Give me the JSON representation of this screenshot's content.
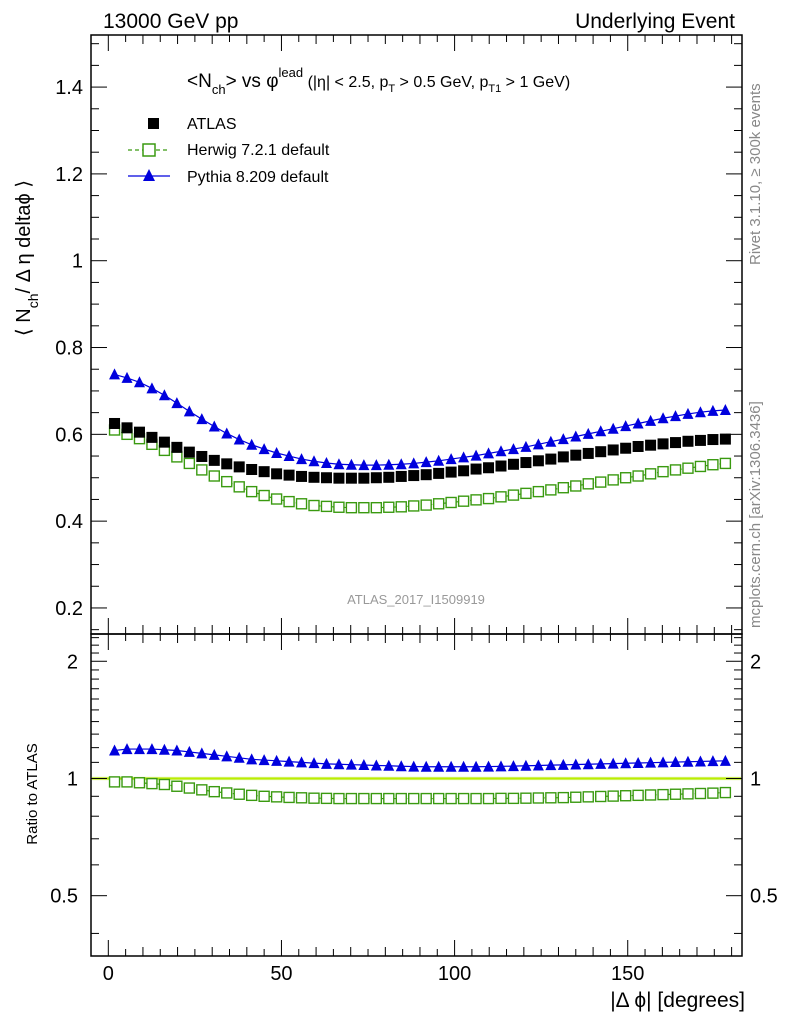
{
  "header": {
    "left": "13000 GeV pp",
    "right": "Underlying Event"
  },
  "title": {
    "main": "<N",
    "main_sub": "ch",
    "main_mid": "> vs φ",
    "main_sup": "lead",
    "cuts_a": " (|η| < 2.5, p",
    "cuts_sub1": "T",
    "cuts_b": " > 0.5 GeV, p",
    "cuts_sub2": "T1",
    "cuts_c": " > 1 GeV)"
  },
  "side_labels": {
    "rivet": "Rivet 3.1.10, ≥ 300k events",
    "mcplots": "mcplots.cern.ch [arXiv:1306.3436]"
  },
  "watermark": "ATLAS_2017_I1509919",
  "ylabel_main": {
    "a": "⟨ N",
    "sub": "ch",
    "b": "/ Δ η deltaϕ ⟩"
  },
  "ylabel_ratio": "Ratio to ATLAS",
  "xlabel": "|Δ ϕ| [degrees]",
  "legend": [
    {
      "label": "ATLAS",
      "marker": "square-filled",
      "color": "#000000"
    },
    {
      "label": "Herwig 7.2.1 default",
      "marker": "square-open",
      "color": "#3a9a10"
    },
    {
      "label": "Pythia 8.209 default",
      "marker": "triangle",
      "color": "#0000dd"
    }
  ],
  "chart_data": {
    "type": "scatter",
    "x_range": [
      -5,
      183
    ],
    "main_ylim": [
      0.14,
      1.52
    ],
    "ratio_ylim": [
      0.35,
      2.35
    ],
    "main_yticks": [
      0.2,
      0.4,
      0.6,
      0.8,
      1,
      1.2,
      1.4
    ],
    "main_yticklabels": [
      "0.2",
      "0.4",
      "0.6",
      "0.8",
      "1",
      "1.2",
      "1.4"
    ],
    "ratio_yticks": [
      0.5,
      1,
      2
    ],
    "ratio_yticklabels": [
      "0.5",
      "1",
      "2"
    ],
    "xticks": [
      0,
      50,
      100,
      150
    ],
    "xticklabels": [
      "0",
      "50",
      "100",
      "150"
    ],
    "x": [
      1.8,
      5.4,
      9,
      12.6,
      16.2,
      19.8,
      23.4,
      27,
      30.6,
      34.2,
      37.8,
      41.4,
      45,
      48.6,
      52.2,
      55.8,
      59.4,
      63,
      66.6,
      70.2,
      73.8,
      77.4,
      81,
      84.6,
      88.2,
      91.8,
      95.4,
      99,
      102.6,
      106.2,
      109.8,
      113.4,
      117,
      120.6,
      124.2,
      127.8,
      131.4,
      135,
      138.6,
      142.2,
      145.8,
      149.4,
      153,
      156.6,
      160.2,
      163.8,
      167.4,
      171,
      174.6,
      178.2
    ],
    "series": [
      {
        "name": "ATLAS",
        "values": [
          0.625,
          0.615,
          0.605,
          0.593,
          0.582,
          0.57,
          0.559,
          0.549,
          0.54,
          0.532,
          0.525,
          0.519,
          0.514,
          0.509,
          0.506,
          0.503,
          0.501,
          0.5,
          0.499,
          0.499,
          0.499,
          0.5,
          0.501,
          0.503,
          0.505,
          0.507,
          0.51,
          0.513,
          0.516,
          0.52,
          0.523,
          0.527,
          0.531,
          0.535,
          0.539,
          0.543,
          0.548,
          0.552,
          0.556,
          0.56,
          0.564,
          0.568,
          0.572,
          0.575,
          0.578,
          0.581,
          0.584,
          0.586,
          0.588,
          0.589
        ]
      },
      {
        "name": "Herwig 7.2.1 default",
        "values": [
          0.61,
          0.6,
          0.59,
          0.577,
          0.563,
          0.548,
          0.533,
          0.518,
          0.504,
          0.491,
          0.479,
          0.468,
          0.459,
          0.451,
          0.445,
          0.44,
          0.436,
          0.434,
          0.432,
          0.431,
          0.431,
          0.431,
          0.432,
          0.433,
          0.435,
          0.437,
          0.44,
          0.443,
          0.446,
          0.449,
          0.452,
          0.456,
          0.46,
          0.464,
          0.468,
          0.472,
          0.477,
          0.481,
          0.486,
          0.49,
          0.495,
          0.5,
          0.504,
          0.509,
          0.514,
          0.518,
          0.522,
          0.526,
          0.53,
          0.533
        ]
      },
      {
        "name": "Pythia 8.209 default",
        "values": [
          0.738,
          0.73,
          0.72,
          0.706,
          0.69,
          0.672,
          0.653,
          0.635,
          0.618,
          0.602,
          0.588,
          0.576,
          0.566,
          0.557,
          0.55,
          0.543,
          0.538,
          0.534,
          0.531,
          0.53,
          0.529,
          0.529,
          0.53,
          0.531,
          0.533,
          0.536,
          0.539,
          0.543,
          0.547,
          0.551,
          0.556,
          0.561,
          0.566,
          0.571,
          0.577,
          0.583,
          0.589,
          0.595,
          0.601,
          0.607,
          0.613,
          0.619,
          0.625,
          0.631,
          0.637,
          0.642,
          0.647,
          0.651,
          0.654,
          0.656
        ]
      }
    ],
    "ratio_series": [
      {
        "name": "Herwig 7.2.1 default",
        "values": [
          0.98,
          0.98,
          0.975,
          0.97,
          0.965,
          0.955,
          0.945,
          0.935,
          0.925,
          0.918,
          0.911,
          0.905,
          0.9,
          0.897,
          0.894,
          0.892,
          0.89,
          0.889,
          0.888,
          0.888,
          0.888,
          0.888,
          0.888,
          0.888,
          0.888,
          0.888,
          0.888,
          0.888,
          0.888,
          0.888,
          0.888,
          0.889,
          0.889,
          0.89,
          0.891,
          0.892,
          0.893,
          0.895,
          0.897,
          0.899,
          0.901,
          0.903,
          0.905,
          0.907,
          0.909,
          0.911,
          0.913,
          0.915,
          0.917,
          0.92
        ]
      },
      {
        "name": "Pythia 8.209 default",
        "values": [
          1.18,
          1.19,
          1.19,
          1.19,
          1.185,
          1.18,
          1.17,
          1.16,
          1.15,
          1.14,
          1.13,
          1.12,
          1.115,
          1.11,
          1.105,
          1.1,
          1.095,
          1.09,
          1.088,
          1.085,
          1.083,
          1.08,
          1.078,
          1.075,
          1.073,
          1.072,
          1.072,
          1.072,
          1.072,
          1.072,
          1.073,
          1.074,
          1.076,
          1.078,
          1.08,
          1.082,
          1.084,
          1.086,
          1.088,
          1.09,
          1.092,
          1.094,
          1.096,
          1.098,
          1.1,
          1.102,
          1.104,
          1.106,
          1.108,
          1.11
        ]
      }
    ],
    "ratio_reference": 1.0,
    "colors": {
      "atlas": "#000000",
      "herwig": "#3a9a10",
      "pythia": "#0000dd",
      "band": "#ddf0a0",
      "band_line": "#bbee00"
    }
  }
}
